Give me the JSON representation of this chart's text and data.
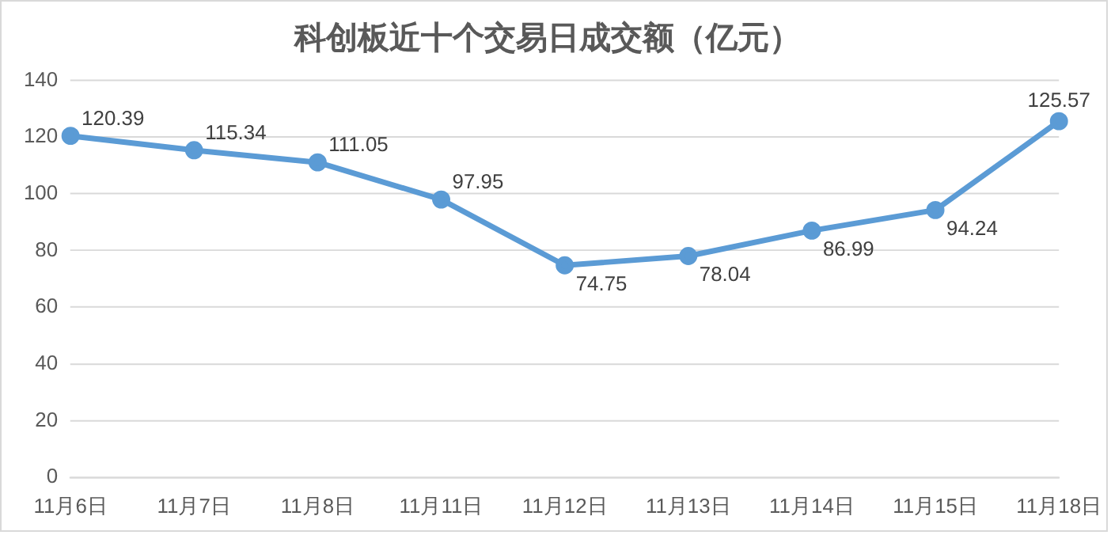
{
  "chart_data": {
    "type": "line",
    "title": "科创板近十个交易日成交额（亿元）",
    "categories": [
      "11月6日",
      "11月7日",
      "11月8日",
      "11月11日",
      "11月12日",
      "11月13日",
      "11月14日",
      "11月15日",
      "11月18日"
    ],
    "series": [
      {
        "color": "#5b9bd5",
        "values": [
          120.39,
          115.34,
          111.05,
          97.95,
          74.75,
          78.04,
          86.99,
          94.24,
          125.57
        ]
      }
    ],
    "ylim": [
      0,
      140
    ],
    "yticks": [
      0,
      20,
      40,
      60,
      80,
      100,
      120,
      140
    ],
    "grid": "y",
    "legend": false,
    "marker": "circle",
    "line_style": "solid",
    "data_labels": true
  }
}
